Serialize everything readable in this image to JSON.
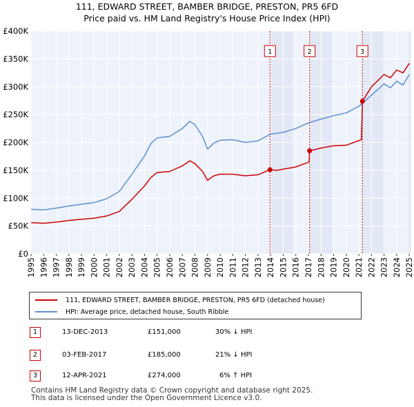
{
  "chart_data": {
    "type": "line",
    "title": "111, EDWARD STREET, BAMBER BRIDGE, PRESTON, PR5 6FD",
    "subtitle": "Price paid vs. HM Land Registry's House Price Index (HPI)",
    "xlabel": "",
    "ylabel": "",
    "xlim": [
      1995,
      2025.1
    ],
    "ylim": [
      0,
      400000
    ],
    "grid": true,
    "yticks": [
      {
        "value": 0,
        "label": "£0"
      },
      {
        "value": 50000,
        "label": "£50K"
      },
      {
        "value": 100000,
        "label": "£100K"
      },
      {
        "value": 150000,
        "label": "£150K"
      },
      {
        "value": 200000,
        "label": "£200K"
      },
      {
        "value": 250000,
        "label": "£250K"
      },
      {
        "value": 300000,
        "label": "£300K"
      },
      {
        "value": 350000,
        "label": "£350K"
      },
      {
        "value": 400000,
        "label": "£400K"
      }
    ],
    "xticks": [
      "1995",
      "1996",
      "1997",
      "1998",
      "1999",
      "2000",
      "2001",
      "2002",
      "2003",
      "2004",
      "2005",
      "2006",
      "2007",
      "2008",
      "2009",
      "2010",
      "2011",
      "2012",
      "2013",
      "2014",
      "2015",
      "2016",
      "2017",
      "2018",
      "2019",
      "2020",
      "2021",
      "2022",
      "2023",
      "2024",
      "2025"
    ],
    "series": [
      {
        "name": "111, EDWARD STREET, BAMBER BRIDGE, PRESTON, PR5 6FD (detached house)",
        "color": "#cc0000",
        "points": [
          [
            1995,
            56000
          ],
          [
            1996,
            55000
          ],
          [
            1997,
            57000
          ],
          [
            1998,
            60000
          ],
          [
            1999,
            62000
          ],
          [
            2000,
            64000
          ],
          [
            2001,
            68000
          ],
          [
            2002,
            76000
          ],
          [
            2003,
            98000
          ],
          [
            2004,
            122000
          ],
          [
            2004.5,
            137000
          ],
          [
            2005,
            146000
          ],
          [
            2006,
            148000
          ],
          [
            2007,
            158000
          ],
          [
            2007.6,
            167000
          ],
          [
            2008,
            162000
          ],
          [
            2008.6,
            148000
          ],
          [
            2009,
            132000
          ],
          [
            2009.5,
            140000
          ],
          [
            2010,
            143000
          ],
          [
            2011,
            143000
          ],
          [
            2012,
            140000
          ],
          [
            2013,
            142000
          ],
          [
            2013.95,
            151000
          ],
          [
            2014.5,
            150000
          ],
          [
            2015,
            152000
          ],
          [
            2016,
            156000
          ],
          [
            2017.05,
            165000
          ],
          [
            2017.09,
            185000
          ],
          [
            2018,
            190000
          ],
          [
            2019,
            194000
          ],
          [
            2020,
            195000
          ],
          [
            2021.2,
            205000
          ],
          [
            2021.25,
            246000
          ],
          [
            2021.28,
            274000
          ],
          [
            2022,
            300000
          ],
          [
            2023,
            322000
          ],
          [
            2023.5,
            316000
          ],
          [
            2024,
            330000
          ],
          [
            2024.5,
            325000
          ],
          [
            2025,
            342000
          ]
        ]
      },
      {
        "name": "HPI: Average price, detached house, South Ribble",
        "color": "#5b8fd0",
        "points": [
          [
            1995,
            80000
          ],
          [
            1996,
            79000
          ],
          [
            1997,
            82000
          ],
          [
            1998,
            86000
          ],
          [
            1999,
            89000
          ],
          [
            2000,
            92000
          ],
          [
            2001,
            99000
          ],
          [
            2002,
            112000
          ],
          [
            2003,
            143000
          ],
          [
            2004,
            176000
          ],
          [
            2004.5,
            198000
          ],
          [
            2005,
            208000
          ],
          [
            2006,
            211000
          ],
          [
            2007,
            225000
          ],
          [
            2007.6,
            238000
          ],
          [
            2008,
            232000
          ],
          [
            2008.6,
            211000
          ],
          [
            2009,
            188000
          ],
          [
            2009.5,
            199000
          ],
          [
            2010,
            204000
          ],
          [
            2011,
            205000
          ],
          [
            2012,
            200000
          ],
          [
            2013,
            203000
          ],
          [
            2014,
            215000
          ],
          [
            2015,
            218000
          ],
          [
            2016,
            225000
          ],
          [
            2017,
            235000
          ],
          [
            2018,
            242000
          ],
          [
            2019,
            248000
          ],
          [
            2020,
            253000
          ],
          [
            2021,
            265000
          ],
          [
            2022,
            285000
          ],
          [
            2023,
            305000
          ],
          [
            2023.5,
            298000
          ],
          [
            2024,
            310000
          ],
          [
            2024.5,
            303000
          ],
          [
            2025,
            322000
          ]
        ]
      }
    ],
    "sales": [
      {
        "num": "1",
        "x": 2013.95,
        "price": 151000
      },
      {
        "num": "2",
        "x": 2017.09,
        "price": 185000
      },
      {
        "num": "3",
        "x": 2021.28,
        "price": 274000
      }
    ]
  },
  "transactions": [
    {
      "num": "1",
      "date": "13-DEC-2013",
      "price": "£151,000",
      "hpi": "30% ↓ HPI"
    },
    {
      "num": "2",
      "date": "03-FEB-2017",
      "price": "£185,000",
      "hpi": "21% ↓ HPI"
    },
    {
      "num": "3",
      "date": "12-APR-2021",
      "price": "£274,000",
      "hpi": "6% ↑ HPI"
    }
  ],
  "footer": {
    "line1": "Contains HM Land Registry data © Crown copyright and database right 2025.",
    "line2": "This data is licensed under the Open Government Licence v3.0."
  }
}
